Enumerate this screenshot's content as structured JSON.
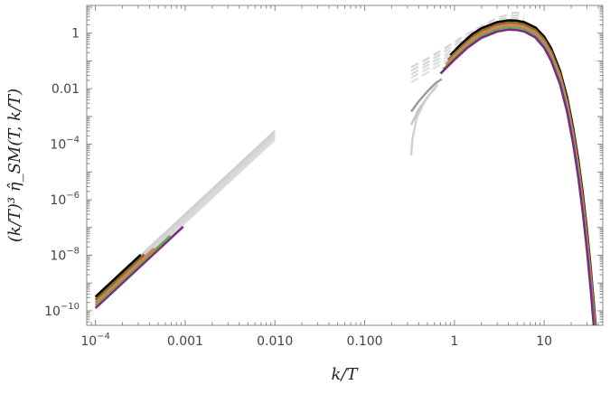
{
  "chart_data": {
    "type": "line",
    "title": "",
    "xlabel": "k/T",
    "ylabel": "(k/T)³ η̂_SM(T, k/T)",
    "x_scale": "log",
    "y_scale": "log",
    "xlim": [
      8e-05,
      45
    ],
    "ylim": [
      3e-11,
      10
    ],
    "grid": false,
    "legend": "none",
    "x_ticks": [
      {
        "value": 0.0001,
        "label": "10",
        "exp": "−4"
      },
      {
        "value": 0.001,
        "label": "0.001"
      },
      {
        "value": 0.01,
        "label": "0.010"
      },
      {
        "value": 0.1,
        "label": "0.100"
      },
      {
        "value": 1,
        "label": "1"
      },
      {
        "value": 10,
        "label": "10"
      }
    ],
    "y_ticks": [
      {
        "value": 1e-10,
        "label": "10",
        "exp": "−10"
      },
      {
        "value": 1e-08,
        "label": "10",
        "exp": "−8"
      },
      {
        "value": 1e-06,
        "label": "10",
        "exp": "−6"
      },
      {
        "value": 0.0001,
        "label": "10",
        "exp": "−4"
      },
      {
        "value": 0.01,
        "label": "0.01"
      },
      {
        "value": 1,
        "label": "1"
      }
    ],
    "series": [
      {
        "group": "low-k-reference",
        "color": "#cfcfcf",
        "style": "solid",
        "x": [
          0.0001,
          0.01
        ],
        "y": [
          3e-10,
          0.0003
        ]
      },
      {
        "group": "low-k-reference",
        "color": "#d3d3d3",
        "style": "solid",
        "x": [
          0.0001,
          0.01
        ],
        "y": [
          2.4e-10,
          0.00024
        ]
      },
      {
        "group": "low-k-reference",
        "color": "#d7d7d7",
        "style": "solid",
        "x": [
          0.0001,
          0.01
        ],
        "y": [
          1.9e-10,
          0.00019
        ]
      },
      {
        "group": "low-k-reference",
        "color": "#dadada",
        "style": "solid",
        "x": [
          0.0001,
          0.01
        ],
        "y": [
          1.5e-10,
          0.00015
        ]
      },
      {
        "group": "low-k",
        "color": "#7f2a84",
        "style": "solid",
        "x": [
          0.0001,
          0.00095
        ],
        "y": [
          1.25e-10,
          1.07e-07
        ]
      },
      {
        "group": "low-k",
        "color": "#6aa84f",
        "style": "solid",
        "x": [
          0.0001,
          0.00068
        ],
        "y": [
          1.6e-10,
          5e-08
        ]
      },
      {
        "group": "low-k",
        "color": "#e07b5f",
        "style": "solid",
        "x": [
          0.0001,
          0.00045
        ],
        "y": [
          2e-10,
          1.8e-08
        ]
      },
      {
        "group": "low-k",
        "color": "#8a6d1f",
        "style": "solid",
        "x": [
          0.0001,
          0.00035
        ],
        "y": [
          2.5e-10,
          1.07e-08
        ]
      },
      {
        "group": "low-k",
        "color": "#000000",
        "style": "solid",
        "x": [
          0.0001,
          0.00032
        ],
        "y": [
          3.2e-10,
          1.05e-08
        ]
      },
      {
        "group": "high-k-reference",
        "color": "#d6d6d6",
        "style": "dashed",
        "x": [
          0.33,
          0.5,
          0.8,
          1.2,
          2,
          3,
          4.5,
          6
        ],
        "y": [
          0.06,
          0.12,
          0.3,
          0.7,
          1.8,
          3.5,
          5.3,
          5.6
        ]
      },
      {
        "group": "high-k-reference",
        "color": "#d9d9d9",
        "style": "dashed",
        "x": [
          0.33,
          0.5,
          0.8,
          1.2,
          2,
          3,
          4.5,
          6
        ],
        "y": [
          0.045,
          0.09,
          0.23,
          0.55,
          1.4,
          2.8,
          4.2,
          4.6
        ]
      },
      {
        "group": "high-k-reference",
        "color": "#dcdcdc",
        "style": "dashed",
        "x": [
          0.33,
          0.5,
          0.8,
          1.2,
          2,
          3,
          4.5,
          6
        ],
        "y": [
          0.033,
          0.07,
          0.17,
          0.42,
          1.1,
          2.2,
          3.4,
          3.7
        ]
      },
      {
        "group": "high-k-reference",
        "color": "#dedede",
        "style": "dashed",
        "x": [
          0.33,
          0.5,
          0.8,
          1.2,
          2,
          3,
          4.5,
          6
        ],
        "y": [
          0.025,
          0.052,
          0.13,
          0.33,
          0.85,
          1.8,
          2.8,
          3.0
        ]
      },
      {
        "group": "high-k-reference",
        "color": "#e0e0e0",
        "style": "dashed",
        "x": [
          0.33,
          0.5,
          0.8,
          1.2,
          2,
          3,
          4.5,
          6
        ],
        "y": [
          0.017,
          0.038,
          0.1,
          0.25,
          0.65,
          1.45,
          2.2,
          2.4
        ]
      },
      {
        "group": "high-k-reference",
        "color": "#9a9a9a",
        "style": "solid",
        "x": [
          0.33,
          0.4,
          0.5,
          0.62,
          0.72
        ],
        "y": [
          0.0015,
          0.0035,
          0.008,
          0.016,
          0.022
        ]
      },
      {
        "group": "high-k-reference",
        "color": "#c4c4c4",
        "style": "solid",
        "x": [
          0.33,
          0.4,
          0.5,
          0.62
        ],
        "y": [
          0.0005,
          0.0018,
          0.005,
          0.011
        ]
      },
      {
        "group": "high-k-reference",
        "color": "#d0d0d0",
        "style": "solid",
        "x": [
          0.33,
          0.34,
          0.38,
          0.45,
          0.55,
          0.65
        ],
        "y": [
          4e-05,
          0.00015,
          0.0009,
          0.0028,
          0.0075,
          0.014
        ]
      },
      {
        "group": "high-k",
        "color": "#000000",
        "style": "solid",
        "x": [
          0.9,
          1.2,
          1.6,
          2,
          3,
          4,
          5,
          6,
          8,
          10,
          12,
          15,
          18,
          21,
          24,
          27,
          30,
          33,
          36,
          39
        ],
        "y": [
          0.16,
          0.42,
          0.95,
          1.5,
          2.5,
          2.9,
          2.8,
          2.5,
          1.6,
          0.75,
          0.28,
          0.045,
          0.005,
          0.0004,
          2.8e-05,
          1.6e-06,
          8e-08,
          3.5e-09,
          1.4e-10,
          5e-12
        ]
      },
      {
        "group": "high-k",
        "color": "#8a6d1f",
        "style": "solid",
        "x": [
          0.85,
          1.2,
          1.6,
          2,
          3,
          4,
          5,
          6,
          8,
          10,
          12,
          15,
          18,
          21,
          24,
          27,
          30,
          33,
          36,
          39
        ],
        "y": [
          0.11,
          0.33,
          0.75,
          1.2,
          2.05,
          2.4,
          2.3,
          2.05,
          1.3,
          0.6,
          0.22,
          0.035,
          0.0038,
          0.0003,
          2e-05,
          1.1e-06,
          5.5e-08,
          2.4e-09,
          9e-11,
          3e-12
        ]
      },
      {
        "group": "high-k",
        "color": "#e07b5f",
        "style": "solid",
        "x": [
          0.8,
          1.2,
          1.6,
          2,
          3,
          4,
          5,
          6,
          8,
          10,
          12,
          15,
          18,
          21,
          24,
          27,
          30,
          33,
          36,
          39
        ],
        "y": [
          0.075,
          0.27,
          0.62,
          1.0,
          1.7,
          2.0,
          1.95,
          1.7,
          1.05,
          0.48,
          0.17,
          0.027,
          0.0029,
          0.00022,
          1.4e-05,
          7.5e-07,
          3.6e-08,
          1.5e-09,
          5.5e-11,
          1.8e-12
        ]
      },
      {
        "group": "high-k",
        "color": "#6aa84f",
        "style": "solid",
        "x": [
          0.75,
          1.2,
          1.6,
          2,
          3,
          4,
          5,
          6,
          8,
          10,
          12,
          15,
          18,
          21,
          24,
          27,
          30,
          33,
          36,
          39
        ],
        "y": [
          0.05,
          0.22,
          0.5,
          0.82,
          1.4,
          1.65,
          1.6,
          1.4,
          0.85,
          0.38,
          0.13,
          0.02,
          0.0021,
          0.00016,
          9.5e-06,
          5e-07,
          2.3e-08,
          9.5e-10,
          3.4e-11,
          1e-12
        ]
      },
      {
        "group": "high-k",
        "color": "#7f2a84",
        "style": "solid",
        "x": [
          0.7,
          1.0,
          1.4,
          2,
          3,
          4,
          5,
          6,
          8,
          10,
          12,
          15,
          18,
          21,
          24,
          27,
          30,
          33,
          36,
          39
        ],
        "y": [
          0.035,
          0.11,
          0.3,
          0.68,
          1.15,
          1.35,
          1.3,
          1.15,
          0.7,
          0.3,
          0.1,
          0.015,
          0.0015,
          0.00011,
          6.5e-06,
          3.3e-07,
          1.5e-08,
          6e-10,
          2.1e-11,
          6e-13
        ]
      }
    ]
  }
}
